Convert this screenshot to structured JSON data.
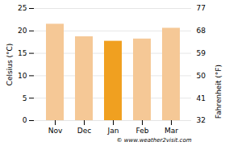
{
  "chart_data": {
    "type": "bar",
    "categories": [
      "Nov",
      "Dec",
      "Jan",
      "Feb",
      "Mar"
    ],
    "values": [
      21.5,
      18.7,
      17.7,
      18.2,
      20.6
    ],
    "colors": [
      "#f5c896",
      "#f5c896",
      "#f0a020",
      "#f5c896",
      "#f5c896"
    ],
    "ylabel": "Celsius (°C)",
    "ylim": [
      0,
      25
    ],
    "yticks": [
      0,
      5,
      10,
      15,
      20,
      25
    ],
    "y2label": "Fahrenheit (°F)",
    "y2lim": [
      32,
      77
    ],
    "y2ticks": [
      32,
      41,
      50,
      59,
      68,
      77
    ],
    "grid": true,
    "annotations": [
      "© www.weather2visit.com"
    ]
  }
}
